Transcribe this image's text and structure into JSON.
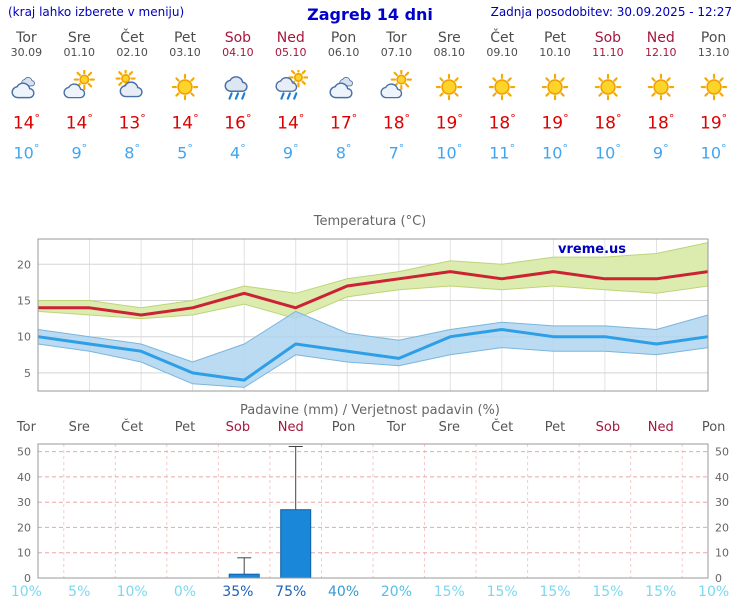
{
  "header": {
    "menu_hint": "(kraj lahko izberete v meniju)",
    "title": "Zagreb 14 dni",
    "last_update": "Zadnja posodobitev: 30.09.2025 - 12:27"
  },
  "watermark": "vreme.us",
  "colors": {
    "accent_blue": "#0000cc",
    "temp_max_text": "#dd0000",
    "temp_min_text": "#3fa5f0",
    "weekend_text": "#a5173c",
    "weekday_text": "#4d4d4d",
    "max_line": "#cc2233",
    "max_band": "#dcecae",
    "min_line": "#2e9fe6",
    "min_band": "#aed5f0",
    "bar_fill": "#1b87d9",
    "prob_low": "#7bd8ef",
    "prob_mid_low": "#54c0e4",
    "prob_mid": "#3798d3",
    "prob_high": "#1d63b5"
  },
  "days": [
    {
      "name": "Tor",
      "date": "30.09",
      "weekend": false,
      "icon": "cloudy",
      "tmax": 14,
      "tmin": 10,
      "prob": "10%",
      "prob_level": "low"
    },
    {
      "name": "Sre",
      "date": "01.10",
      "weekend": false,
      "icon": "partly-sunny",
      "tmax": 14,
      "tmin": 9,
      "prob": "5%",
      "prob_level": "low"
    },
    {
      "name": "Čet",
      "date": "02.10",
      "weekend": false,
      "icon": "mostly-cloudy",
      "tmax": 13,
      "tmin": 8,
      "prob": "10%",
      "prob_level": "low"
    },
    {
      "name": "Pet",
      "date": "03.10",
      "weekend": false,
      "icon": "sunny",
      "tmax": 14,
      "tmin": 5,
      "prob": "0%",
      "prob_level": "low"
    },
    {
      "name": "Sob",
      "date": "04.10",
      "weekend": true,
      "icon": "rain",
      "tmax": 16,
      "tmin": 4,
      "prob": "35%",
      "prob_level": "high"
    },
    {
      "name": "Ned",
      "date": "05.10",
      "weekend": true,
      "icon": "sun-showers",
      "tmax": 14,
      "tmin": 9,
      "prob": "75%",
      "prob_level": "high"
    },
    {
      "name": "Pon",
      "date": "06.10",
      "weekend": false,
      "icon": "cloudy",
      "tmax": 17,
      "tmin": 8,
      "prob": "40%",
      "prob_level": "mid"
    },
    {
      "name": "Tor",
      "date": "07.10",
      "weekend": false,
      "icon": "partly-sunny",
      "tmax": 18,
      "tmin": 7,
      "prob": "20%",
      "prob_level": "mid_low"
    },
    {
      "name": "Sre",
      "date": "08.10",
      "weekend": false,
      "icon": "sunny",
      "tmax": 19,
      "tmin": 10,
      "prob": "15%",
      "prob_level": "low"
    },
    {
      "name": "Čet",
      "date": "09.10",
      "weekend": false,
      "icon": "sunny",
      "tmax": 18,
      "tmin": 11,
      "prob": "15%",
      "prob_level": "low"
    },
    {
      "name": "Pet",
      "date": "10.10",
      "weekend": false,
      "icon": "sunny",
      "tmax": 19,
      "tmin": 10,
      "prob": "15%",
      "prob_level": "low"
    },
    {
      "name": "Sob",
      "date": "11.10",
      "weekend": true,
      "icon": "sunny",
      "tmax": 18,
      "tmin": 10,
      "prob": "15%",
      "prob_level": "low"
    },
    {
      "name": "Ned",
      "date": "12.10",
      "weekend": true,
      "icon": "sunny",
      "tmax": 18,
      "tmin": 9,
      "prob": "15%",
      "prob_level": "low"
    },
    {
      "name": "Pon",
      "date": "13.10",
      "weekend": false,
      "icon": "sunny",
      "tmax": 19,
      "tmin": 10,
      "prob": "10%",
      "prob_level": "low"
    }
  ],
  "chart_data": [
    {
      "type": "line",
      "title": "Temperatura (°C)",
      "x": [
        "Tor 30.09",
        "Sre 01.10",
        "Čet 02.10",
        "Pet 03.10",
        "Sob 04.10",
        "Ned 05.10",
        "Pon 06.10",
        "Tor 07.10",
        "Sre 08.10",
        "Čet 09.10",
        "Pet 10.10",
        "Sob 11.10",
        "Ned 12.10",
        "Pon 13.10"
      ],
      "ylabel": "°C",
      "yticks": [
        5,
        10,
        15,
        20
      ],
      "ylim": [
        2.5,
        23.5
      ],
      "grid": true,
      "series": [
        {
          "name": "max temperature",
          "values": [
            14,
            14,
            13,
            14,
            16,
            14,
            17,
            18,
            19,
            18,
            19,
            18,
            18,
            19
          ],
          "band_hi": [
            15,
            15,
            14,
            15,
            17,
            16,
            18,
            19,
            20.5,
            20,
            21,
            21,
            21.5,
            23
          ],
          "band_lo": [
            13.5,
            13,
            12.5,
            13,
            14.5,
            12.5,
            15.5,
            16.5,
            17,
            16.5,
            17,
            16.5,
            16,
            17
          ]
        },
        {
          "name": "min temperature",
          "values": [
            10,
            9,
            8,
            5,
            4,
            9,
            8,
            7,
            10,
            11,
            10,
            10,
            9,
            10
          ],
          "band_hi": [
            11,
            10,
            9,
            6.5,
            9,
            13.5,
            10.5,
            9.5,
            11,
            12,
            11.5,
            11.5,
            11,
            13
          ],
          "band_lo": [
            9,
            8,
            6.5,
            3.5,
            3,
            7.5,
            6.5,
            6,
            7.5,
            8.5,
            8,
            8,
            7.5,
            8.5
          ]
        }
      ]
    },
    {
      "type": "bar",
      "title": "Padavine (mm) / Verjetnost padavin (%)",
      "categories": [
        "Tor",
        "Sre",
        "Čet",
        "Pet",
        "Sob",
        "Ned",
        "Pon",
        "Tor",
        "Sre",
        "Čet",
        "Pet",
        "Sob",
        "Ned",
        "Pon"
      ],
      "values": [
        0,
        0,
        0,
        0,
        1.5,
        27,
        0,
        0,
        0,
        0,
        0,
        0,
        0,
        0
      ],
      "whisker_max": [
        0,
        0,
        0,
        0,
        8,
        52,
        0,
        0,
        0,
        0,
        0,
        0,
        0,
        0
      ],
      "probability_pct": [
        10,
        5,
        10,
        0,
        35,
        75,
        40,
        20,
        15,
        15,
        15,
        15,
        15,
        10
      ],
      "yticks": [
        0,
        10,
        20,
        30,
        40,
        50
      ],
      "ylim": [
        0,
        53
      ],
      "grid": true
    }
  ]
}
